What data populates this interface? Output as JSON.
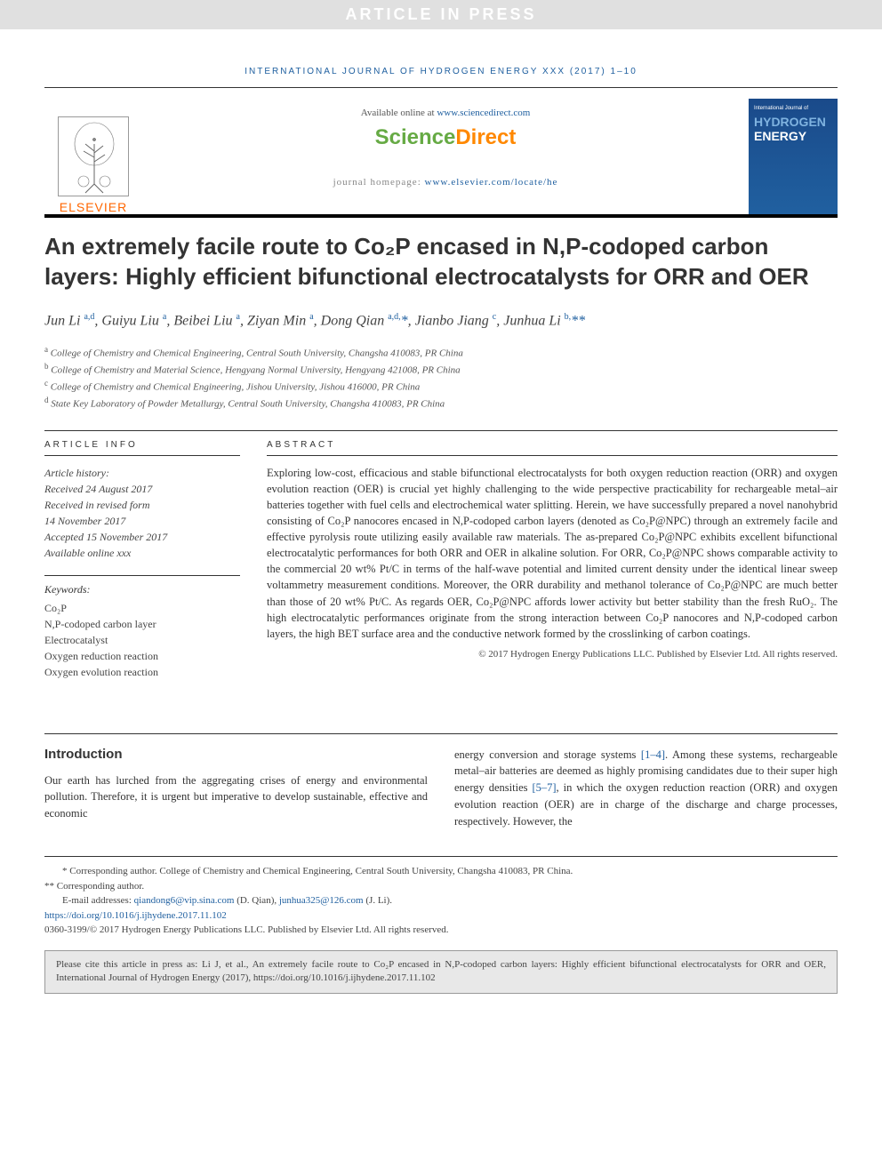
{
  "banner": "ARTICLE IN PRESS",
  "journal_ref": "INTERNATIONAL JOURNAL OF HYDROGEN ENERGY XXX (2017) 1–10",
  "header": {
    "available_prefix": "Available online at ",
    "available_url": "www.sciencedirect.com",
    "sd_sci": "Science",
    "sd_dir": "Direct",
    "homepage_prefix": "journal homepage: ",
    "homepage_url": "www.elsevier.com/locate/he",
    "elsevier": "ELSEVIER",
    "cover_top": "International Journal of",
    "cover_h": "HYDROGEN",
    "cover_e": "ENERGY"
  },
  "title": "An extremely facile route to Co₂P encased in N,P-codoped carbon layers: Highly efficient bifunctional electrocatalysts for ORR and OER",
  "authors_html": "Jun Li <sup>a,d</sup>, Guiyu Liu <sup>a</sup>, Beibei Liu <sup>a</sup>, Ziyan Min <sup>a</sup>, Dong Qian <sup>a,d,</sup><span class='ast'>*</span>, Jianbo Jiang <sup>c</sup>, Junhua Li <sup>b,</sup><span class='ast'>**</span>",
  "affiliations": {
    "a": "College of Chemistry and Chemical Engineering, Central South University, Changsha 410083, PR China",
    "b": "College of Chemistry and Material Science, Hengyang Normal University, Hengyang 421008, PR China",
    "c": "College of Chemistry and Chemical Engineering, Jishou University, Jishou 416000, PR China",
    "d": "State Key Laboratory of Powder Metallurgy, Central South University, Changsha 410083, PR China"
  },
  "article_info_head": "ARTICLE INFO",
  "abstract_head": "ABSTRACT",
  "history": {
    "label": "Article history:",
    "received": "Received 24 August 2017",
    "revised1": "Received in revised form",
    "revised2": "14 November 2017",
    "accepted": "Accepted 15 November 2017",
    "online": "Available online xxx"
  },
  "keywords_label": "Keywords:",
  "keywords": [
    "Co₂P",
    "N,P-codoped carbon layer",
    "Electrocatalyst",
    "Oxygen reduction reaction",
    "Oxygen evolution reaction"
  ],
  "abstract": "Exploring low-cost, efficacious and stable bifunctional electrocatalysts for both oxygen reduction reaction (ORR) and oxygen evolution reaction (OER) is crucial yet highly challenging to the wide perspective practicability for rechargeable metal–air batteries together with fuel cells and electrochemical water splitting. Herein, we have successfully prepared a novel nanohybrid consisting of Co₂P nanocores encased in N,P-codoped carbon layers (denoted as Co₂P@NPC) through an extremely facile and effective pyrolysis route utilizing easily available raw materials. The as-prepared Co₂P@NPC exhibits excellent bifunctional electrocatalytic performances for both ORR and OER in alkaline solution. For ORR, Co₂P@NPC shows comparable activity to the commercial 20 wt% Pt/C in terms of the half-wave potential and limited current density under the identical linear sweep voltammetry measurement conditions. Moreover, the ORR durability and methanol tolerance of Co₂P@NPC are much better than those of 20 wt% Pt/C. As regards OER, Co₂P@NPC affords lower activity but better stability than the fresh RuO₂. The high electrocatalytic performances originate from the strong interaction between Co₂P nanocores and N,P-codoped carbon layers, the high BET surface area and the conductive network formed by the crosslinking of carbon coatings.",
  "copyright": "© 2017 Hydrogen Energy Publications LLC. Published by Elsevier Ltd. All rights reserved.",
  "intro_head": "Introduction",
  "intro_left": "Our earth has lurched from the aggregating crises of energy and environmental pollution. Therefore, it is urgent but imperative to develop sustainable, effective and economic",
  "intro_right_pre": "energy conversion and storage systems ",
  "intro_right_ref1": "[1–4]",
  "intro_right_mid": ". Among these systems, rechargeable metal–air batteries are deemed as highly promising candidates due to their super high energy densities ",
  "intro_right_ref2": "[5–7]",
  "intro_right_post": ", in which the oxygen reduction reaction (ORR) and oxygen evolution reaction (OER) are in charge of the discharge and charge processes, respectively. However, the",
  "footnotes": {
    "corr1": "* Corresponding author. College of Chemistry and Chemical Engineering, Central South University, Changsha 410083, PR China.",
    "corr2": "** Corresponding author.",
    "email_label": "E-mail addresses: ",
    "email1": "qiandong6@vip.sina.com",
    "email1_name": " (D. Qian), ",
    "email2": "junhua325@126.com",
    "email2_name": " (J. Li).",
    "doi": "https://doi.org/10.1016/j.ijhydene.2017.11.102",
    "issn": "0360-3199/© 2017 Hydrogen Energy Publications LLC. Published by Elsevier Ltd. All rights reserved."
  },
  "citebox": "Please cite this article in press as: Li J, et al., An extremely facile route to Co₂P encased in N,P-codoped carbon layers: Highly efficient bifunctional electrocatalysts for ORR and OER, International Journal of Hydrogen Energy (2017), https://doi.org/10.1016/j.ijhydene.2017.11.102",
  "colors": {
    "link": "#2060a0",
    "elsevier_orange": "#ff6600",
    "sd_green": "#66aa44",
    "sd_orange": "#ff8800",
    "cover_bg": "#2060a0"
  }
}
